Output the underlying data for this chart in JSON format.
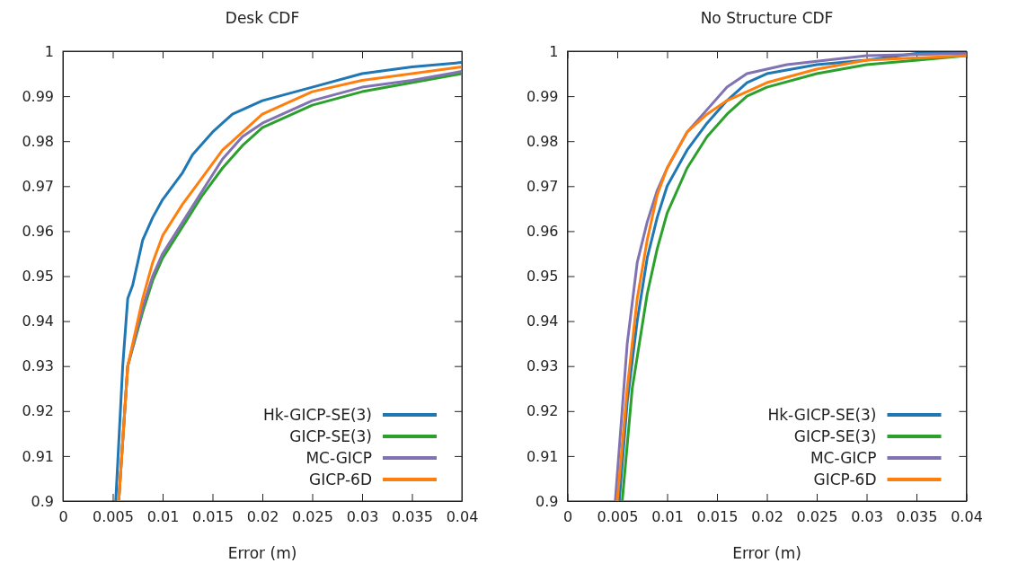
{
  "chart_data": [
    {
      "type": "line",
      "title": "Desk CDF",
      "xlabel": "Error (m)",
      "xlim": [
        0,
        0.04
      ],
      "ylim": [
        0.9,
        1
      ],
      "xticks": [
        0,
        0.005,
        0.01,
        0.015,
        0.02,
        0.025,
        0.03,
        0.035,
        0.04
      ],
      "yticks": [
        0.9,
        0.91,
        0.92,
        0.93,
        0.94,
        0.95,
        0.96,
        0.97,
        0.98,
        0.99,
        1
      ],
      "legend": "bottom right",
      "grid": false,
      "series": [
        {
          "name": "Hk-GICP-SE(3)",
          "color": "#1f77b4",
          "x": [
            0.0053,
            0.006,
            0.0065,
            0.007,
            0.008,
            0.009,
            0.01,
            0.012,
            0.013,
            0.015,
            0.017,
            0.02,
            0.025,
            0.03,
            0.035,
            0.04
          ],
          "values": [
            0.9,
            0.93,
            0.945,
            0.948,
            0.958,
            0.963,
            0.967,
            0.973,
            0.977,
            0.982,
            0.986,
            0.989,
            0.992,
            0.995,
            0.9965,
            0.9975
          ]
        },
        {
          "name": "GICP-SE(3)",
          "color": "#2ca02c",
          "x": [
            0.0056,
            0.0065,
            0.008,
            0.009,
            0.01,
            0.012,
            0.014,
            0.016,
            0.018,
            0.02,
            0.025,
            0.03,
            0.035,
            0.04
          ],
          "values": [
            0.9,
            0.93,
            0.942,
            0.949,
            0.954,
            0.961,
            0.968,
            0.974,
            0.979,
            0.983,
            0.988,
            0.991,
            0.993,
            0.995
          ]
        },
        {
          "name": "MC-GICP",
          "color": "#8172b2",
          "x": [
            0.0056,
            0.0065,
            0.008,
            0.009,
            0.01,
            0.012,
            0.014,
            0.016,
            0.018,
            0.02,
            0.025,
            0.03,
            0.035,
            0.04
          ],
          "values": [
            0.9,
            0.93,
            0.943,
            0.95,
            0.955,
            0.962,
            0.969,
            0.976,
            0.981,
            0.984,
            0.989,
            0.992,
            0.9935,
            0.9955
          ]
        },
        {
          "name": "GICP-6D",
          "color": "#ff7f0e",
          "x": [
            0.0056,
            0.0065,
            0.008,
            0.009,
            0.01,
            0.012,
            0.014,
            0.016,
            0.018,
            0.02,
            0.025,
            0.03,
            0.035,
            0.04
          ],
          "values": [
            0.9,
            0.93,
            0.945,
            0.953,
            0.959,
            0.966,
            0.972,
            0.978,
            0.982,
            0.986,
            0.991,
            0.9935,
            0.995,
            0.9965
          ]
        }
      ]
    },
    {
      "type": "line",
      "title": "No Structure CDF",
      "xlabel": "Error (m)",
      "xlim": [
        0,
        0.04
      ],
      "ylim": [
        0.9,
        1
      ],
      "xticks": [
        0,
        0.005,
        0.01,
        0.015,
        0.02,
        0.025,
        0.03,
        0.035,
        0.04
      ],
      "yticks": [
        0.9,
        0.91,
        0.92,
        0.93,
        0.94,
        0.95,
        0.96,
        0.97,
        0.98,
        0.99,
        1
      ],
      "legend": "bottom right",
      "grid": false,
      "series": [
        {
          "name": "Hk-GICP-SE(3)",
          "color": "#1f77b4",
          "x": [
            0.0052,
            0.006,
            0.007,
            0.008,
            0.009,
            0.01,
            0.012,
            0.014,
            0.016,
            0.018,
            0.02,
            0.025,
            0.03,
            0.035,
            0.04
          ],
          "values": [
            0.9,
            0.922,
            0.94,
            0.954,
            0.963,
            0.97,
            0.978,
            0.984,
            0.989,
            0.993,
            0.995,
            0.997,
            0.998,
            0.9995,
            0.9995
          ]
        },
        {
          "name": "GICP-SE(3)",
          "color": "#2ca02c",
          "x": [
            0.0055,
            0.0065,
            0.008,
            0.009,
            0.01,
            0.012,
            0.014,
            0.016,
            0.018,
            0.02,
            0.025,
            0.03,
            0.04
          ],
          "values": [
            0.9,
            0.925,
            0.946,
            0.956,
            0.964,
            0.974,
            0.981,
            0.986,
            0.99,
            0.992,
            0.995,
            0.997,
            0.999
          ]
        },
        {
          "name": "MC-GICP",
          "color": "#8172b2",
          "x": [
            0.0048,
            0.006,
            0.007,
            0.008,
            0.009,
            0.01,
            0.012,
            0.014,
            0.016,
            0.018,
            0.022,
            0.03,
            0.04
          ],
          "values": [
            0.9,
            0.935,
            0.953,
            0.962,
            0.969,
            0.974,
            0.982,
            0.987,
            0.992,
            0.995,
            0.997,
            0.999,
            0.9995
          ]
        },
        {
          "name": "GICP-6D",
          "color": "#ff7f0e",
          "x": [
            0.005,
            0.006,
            0.007,
            0.008,
            0.009,
            0.01,
            0.012,
            0.014,
            0.016,
            0.02,
            0.025,
            0.03,
            0.04
          ],
          "values": [
            0.9,
            0.925,
            0.945,
            0.958,
            0.968,
            0.974,
            0.982,
            0.986,
            0.989,
            0.993,
            0.996,
            0.998,
            0.999
          ]
        }
      ]
    }
  ]
}
